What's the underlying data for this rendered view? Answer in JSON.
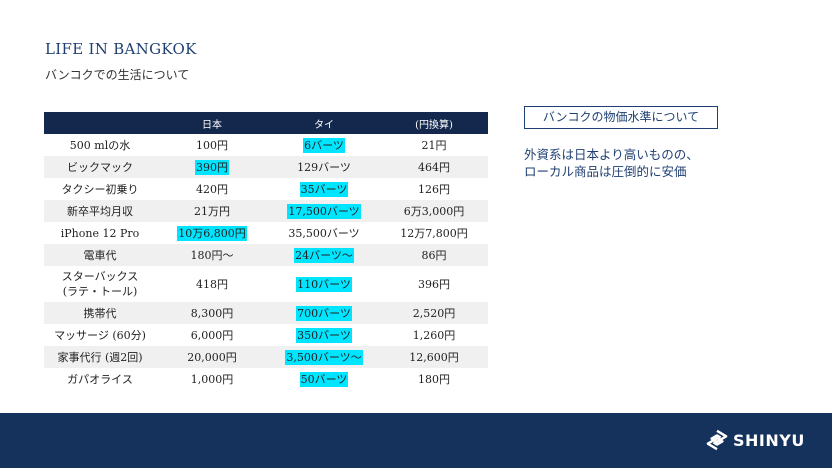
{
  "header": {
    "title": "LIFE IN BANGKOK",
    "subtitle": "バンコクでの生活について"
  },
  "table": {
    "columns": [
      "",
      "日本",
      "タイ",
      "(円換算)"
    ],
    "highlight_color": "#00e5ff",
    "rows": [
      {
        "item": "500 mlの水",
        "japan": "100円",
        "thai": "6バーツ",
        "yen": "21円",
        "highlight": "thai"
      },
      {
        "item": "ビックマック",
        "japan": "390円",
        "thai": "129バーツ",
        "yen": "464円",
        "highlight": "japan"
      },
      {
        "item": "タクシー初乗り",
        "japan": "420円",
        "thai": "35バーツ",
        "yen": "126円",
        "highlight": "thai"
      },
      {
        "item": "新卒平均月収",
        "japan": "21万円",
        "thai": "17,500バーツ",
        "yen": "6万3,000円",
        "highlight": "thai"
      },
      {
        "item": "iPhone 12 Pro",
        "japan": "10万6,800円",
        "thai": "35,500バーツ",
        "yen": "12万7,800円",
        "highlight": "japan"
      },
      {
        "item": "電車代",
        "japan": "180円～",
        "thai": "24バーツ～",
        "yen": "86円",
        "highlight": "thai"
      },
      {
        "item": "スターバックス",
        "item2": "(ラテ・トール)",
        "japan": "418円",
        "thai": "110バーツ",
        "yen": "396円",
        "highlight": "thai"
      },
      {
        "item": "携帯代",
        "japan": "8,300円",
        "thai": "700バーツ",
        "yen": "2,520円",
        "highlight": "thai"
      },
      {
        "item": "マッサージ (60分)",
        "japan": "6,000円",
        "thai": "350バーツ",
        "yen": "1,260円",
        "highlight": "thai"
      },
      {
        "item": "家事代行 (週2回)",
        "japan": "20,000円",
        "thai": "3,500バーツ～",
        "yen": "12,600円",
        "highlight": "thai"
      },
      {
        "item": "ガパオライス",
        "japan": "1,000円",
        "thai": "50バーツ",
        "yen": "180円",
        "highlight": "thai"
      }
    ]
  },
  "note": {
    "heading": "バンコクの物価水準について",
    "lines": [
      "外資系は日本より高いものの、",
      "ローカル商品は圧倒的に安価"
    ]
  },
  "footer": {
    "logo_text": "SHINYU",
    "logo_icon": "shinyu-logo-icon",
    "background": "#14325c"
  }
}
